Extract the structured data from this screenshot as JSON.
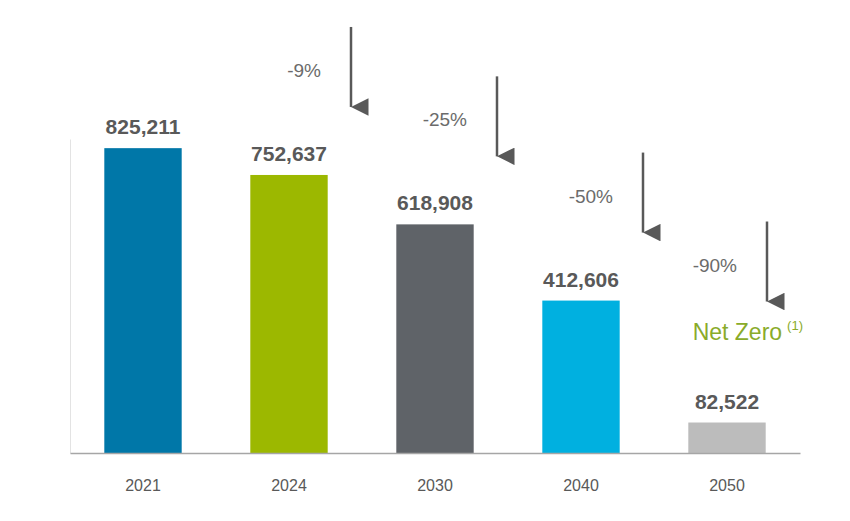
{
  "chart_data": {
    "type": "bar",
    "categories": [
      "2021",
      "2024",
      "2030",
      "2040",
      "2050"
    ],
    "values": [
      825211,
      752637,
      618908,
      412606,
      82522
    ],
    "value_labels": [
      "825,211",
      "752,637",
      "618,908",
      "412,606",
      "82,522"
    ],
    "colors": [
      "#0077a8",
      "#9cb800",
      "#5f6368",
      "#00b0e0",
      "#bcbcbc"
    ],
    "ylim": [
      0,
      850000
    ],
    "data_labels": true,
    "tick_labels": "x",
    "grid": false,
    "annotations": [
      {
        "category": "2024",
        "text": "-9%"
      },
      {
        "category": "2030",
        "text": "-25%"
      },
      {
        "category": "2040",
        "text": "-50%"
      },
      {
        "category": "2050",
        "text": "-90%",
        "label": "Net Zero",
        "superscript": "(1)"
      }
    ]
  }
}
